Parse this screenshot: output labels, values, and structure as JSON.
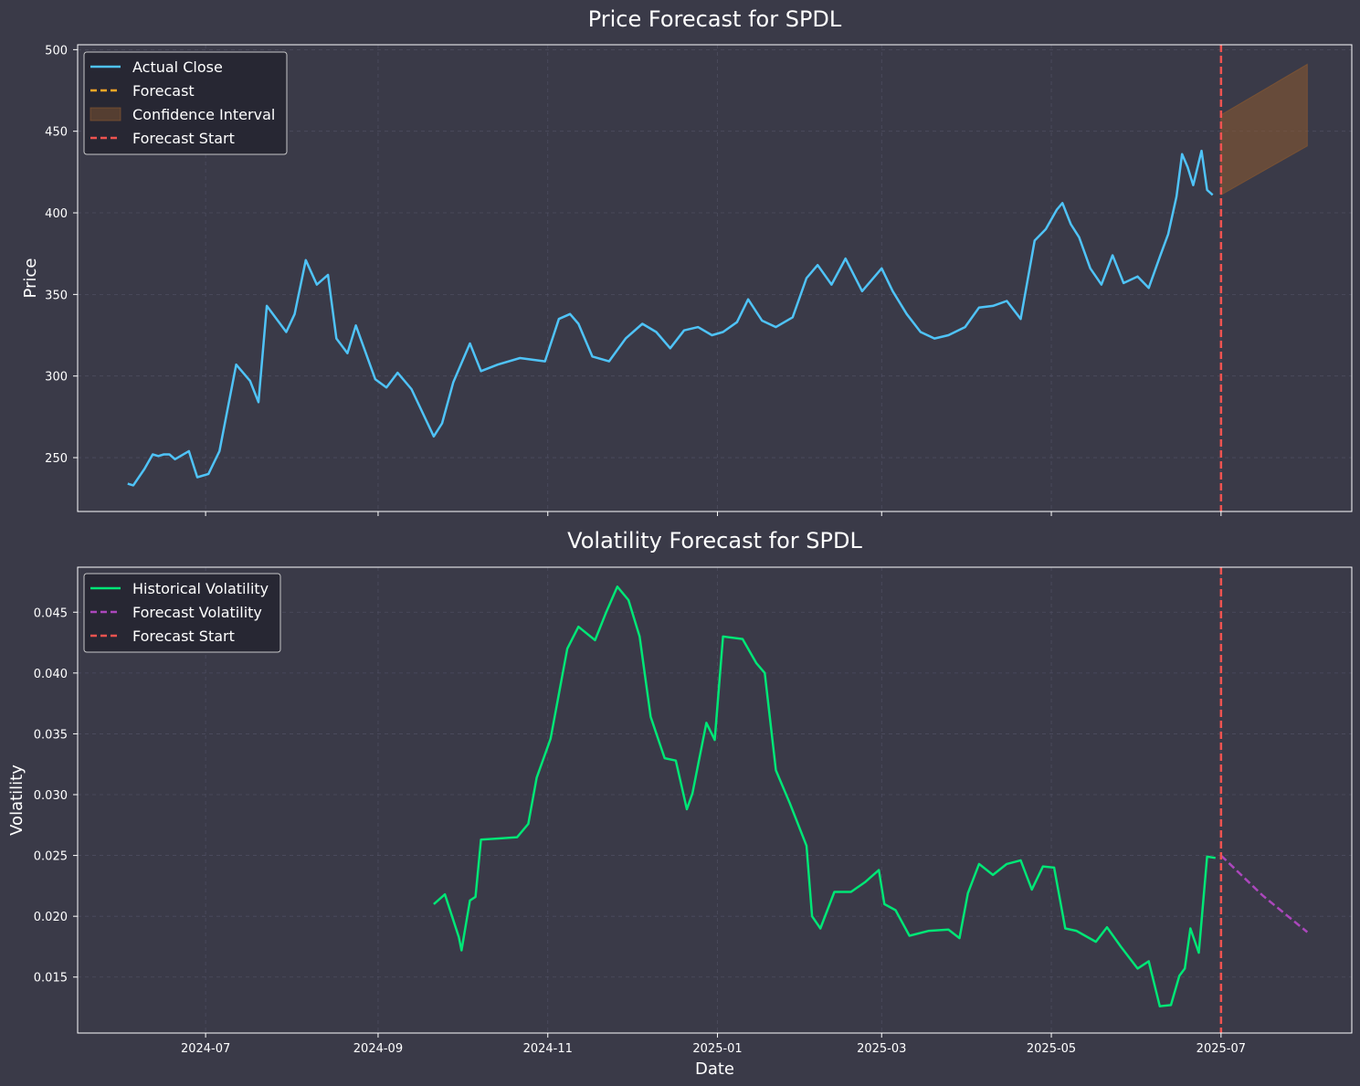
{
  "chart_data": [
    {
      "type": "line",
      "title": "Price Forecast for SPDL",
      "xlabel": "",
      "ylabel": "Price",
      "xlim": [
        "2024-05-16",
        "2025-08-17"
      ],
      "ylim": [
        217,
        503
      ],
      "x_ticks": [
        "2024-07-01",
        "2024-09-01",
        "2024-11-01",
        "2025-01-01",
        "2025-03-01",
        "2025-05-01",
        "2025-07-01"
      ],
      "y_ticks": [
        250,
        300,
        350,
        400,
        450,
        500
      ],
      "grid": true,
      "legend_position": "top-left",
      "legend": [
        "Actual Close",
        "Forecast",
        "Confidence Interval",
        "Forecast Start"
      ],
      "colors": {
        "actual": "#4fc3f7",
        "forecast": "#ffa726",
        "confidence_fill": "#8d5a2f",
        "forecast_start": "#ef5350"
      },
      "forecast_start": "2025-07-01",
      "actual_close": {
        "x": [
          "2024-06-03",
          "2024-06-05",
          "2024-06-09",
          "2024-06-12",
          "2024-06-14",
          "2024-06-16",
          "2024-06-18",
          "2024-06-20",
          "2024-06-25",
          "2024-06-28",
          "2024-07-02",
          "2024-07-06",
          "2024-07-12",
          "2024-07-17",
          "2024-07-20",
          "2024-07-23",
          "2024-07-30",
          "2024-08-02",
          "2024-08-06",
          "2024-08-10",
          "2024-08-14",
          "2024-08-17",
          "2024-08-21",
          "2024-08-24",
          "2024-08-31",
          "2024-09-04",
          "2024-09-08",
          "2024-09-13",
          "2024-09-21",
          "2024-09-24",
          "2024-09-28",
          "2024-10-04",
          "2024-10-08",
          "2024-10-14",
          "2024-10-22",
          "2024-10-31",
          "2024-11-05",
          "2024-11-09",
          "2024-11-12",
          "2024-11-17",
          "2024-11-23",
          "2024-11-29",
          "2024-12-05",
          "2024-12-10",
          "2024-12-15",
          "2024-12-20",
          "2024-12-25",
          "2024-12-30",
          "2025-01-03",
          "2025-01-08",
          "2025-01-12",
          "2025-01-17",
          "2025-01-22",
          "2025-01-28",
          "2025-02-02",
          "2025-02-06",
          "2025-02-11",
          "2025-02-16",
          "2025-02-22",
          "2025-03-01",
          "2025-03-05",
          "2025-03-10",
          "2025-03-15",
          "2025-03-20",
          "2025-03-25",
          "2025-03-31",
          "2025-04-05",
          "2025-04-10",
          "2025-04-15",
          "2025-04-20",
          "2025-04-25",
          "2025-04-29",
          "2025-05-03",
          "2025-05-05",
          "2025-05-08",
          "2025-05-11",
          "2025-05-15",
          "2025-05-19",
          "2025-05-23",
          "2025-05-27",
          "2025-06-01",
          "2025-06-05",
          "2025-06-09",
          "2025-06-12",
          "2025-06-15",
          "2025-06-17",
          "2025-06-19",
          "2025-06-21",
          "2025-06-24",
          "2025-06-26",
          "2025-06-28"
        ],
        "y": [
          234,
          233,
          243,
          252,
          251,
          252,
          252,
          249,
          254,
          238,
          240,
          254,
          307,
          297,
          284,
          343,
          327,
          338,
          371,
          356,
          362,
          323,
          314,
          331,
          298,
          293,
          302,
          292,
          263,
          271,
          296,
          320,
          303,
          307,
          311,
          309,
          335,
          338,
          332,
          312,
          309,
          323,
          332,
          327,
          317,
          328,
          330,
          325,
          327,
          333,
          347,
          334,
          330,
          336,
          360,
          368,
          356,
          372,
          352,
          366,
          352,
          338,
          327,
          323,
          325,
          330,
          342,
          343,
          346,
          335,
          383,
          390,
          402,
          406,
          393,
          385,
          366,
          356,
          374,
          357,
          361,
          354,
          373,
          387,
          410,
          436,
          428,
          417,
          438,
          414,
          411
        ],
        "name": "Actual Close"
      },
      "forecast_band": {
        "x": [
          "2025-07-01",
          "2025-08-01"
        ],
        "lower": [
          411,
          441
        ],
        "upper": [
          460,
          491
        ],
        "name": "Confidence Interval"
      }
    },
    {
      "type": "line",
      "title": "Volatility Forecast for SPDL",
      "xlabel": "Date",
      "ylabel": "Volatility",
      "xlim": [
        "2024-05-16",
        "2025-08-17"
      ],
      "ylim": [
        0.0104,
        0.0487
      ],
      "x_ticks": [
        "2024-07-01",
        "2024-09-01",
        "2024-11-01",
        "2025-01-01",
        "2025-03-01",
        "2025-05-01",
        "2025-07-01"
      ],
      "x_tick_labels": [
        "2024-07",
        "2024-09",
        "2024-11",
        "2025-01",
        "2025-03",
        "2025-05",
        "2025-07"
      ],
      "y_ticks": [
        0.015,
        0.02,
        0.025,
        0.03,
        0.035,
        0.04,
        0.045
      ],
      "grid": true,
      "legend_position": "top-left",
      "legend": [
        "Historical Volatility",
        "Forecast Volatility",
        "Forecast Start"
      ],
      "colors": {
        "historical": "#00e676",
        "forecast": "#ab47bc",
        "forecast_start": "#ef5350"
      },
      "forecast_start": "2025-07-01",
      "historical_volatility": {
        "x": [
          "2024-09-21",
          "2024-09-25",
          "2024-09-30",
          "2024-10-01",
          "2024-10-04",
          "2024-10-06",
          "2024-10-08",
          "2024-10-15",
          "2024-10-21",
          "2024-10-25",
          "2024-10-28",
          "2024-11-02",
          "2024-11-08",
          "2024-11-12",
          "2024-11-18",
          "2024-11-22",
          "2024-11-26",
          "2024-11-30",
          "2024-12-04",
          "2024-12-08",
          "2024-12-13",
          "2024-12-17",
          "2024-12-21",
          "2024-12-23",
          "2024-12-28",
          "2024-12-31",
          "2025-01-03",
          "2025-01-10",
          "2025-01-15",
          "2025-01-18",
          "2025-01-22",
          "2025-01-27",
          "2025-02-02",
          "2025-02-04",
          "2025-02-07",
          "2025-02-12",
          "2025-02-18",
          "2025-02-23",
          "2025-02-28",
          "2025-03-02",
          "2025-03-06",
          "2025-03-11",
          "2025-03-18",
          "2025-03-25",
          "2025-03-29",
          "2025-04-01",
          "2025-04-05",
          "2025-04-10",
          "2025-04-15",
          "2025-04-20",
          "2025-04-24",
          "2025-04-28",
          "2025-05-02",
          "2025-05-06",
          "2025-05-10",
          "2025-05-17",
          "2025-05-21",
          "2025-05-26",
          "2025-06-01",
          "2025-06-05",
          "2025-06-09",
          "2025-06-13",
          "2025-06-16",
          "2025-06-18",
          "2025-06-20",
          "2025-06-23",
          "2025-06-26",
          "2025-06-29"
        ],
        "y": [
          0.021,
          0.0218,
          0.0183,
          0.0172,
          0.0213,
          0.0216,
          0.0263,
          0.0264,
          0.0265,
          0.0276,
          0.0314,
          0.0346,
          0.042,
          0.0438,
          0.0427,
          0.045,
          0.0471,
          0.046,
          0.043,
          0.0364,
          0.033,
          0.0328,
          0.0288,
          0.0301,
          0.0359,
          0.0345,
          0.043,
          0.0428,
          0.0408,
          0.04,
          0.032,
          0.0293,
          0.0258,
          0.02,
          0.019,
          0.022,
          0.022,
          0.0228,
          0.0238,
          0.021,
          0.0205,
          0.0184,
          0.0188,
          0.0189,
          0.0182,
          0.0219,
          0.0243,
          0.0234,
          0.0243,
          0.0246,
          0.0222,
          0.0241,
          0.024,
          0.019,
          0.0188,
          0.0179,
          0.0191,
          0.0175,
          0.0157,
          0.0163,
          0.0126,
          0.0127,
          0.0151,
          0.0157,
          0.019,
          0.017,
          0.0249,
          0.0248
        ],
        "name": "Historical Volatility"
      },
      "forecast_volatility": {
        "x": [
          "2025-07-01",
          "2025-07-16",
          "2025-08-01"
        ],
        "y": [
          0.025,
          0.0217,
          0.0187
        ],
        "name": "Forecast Volatility"
      }
    }
  ]
}
